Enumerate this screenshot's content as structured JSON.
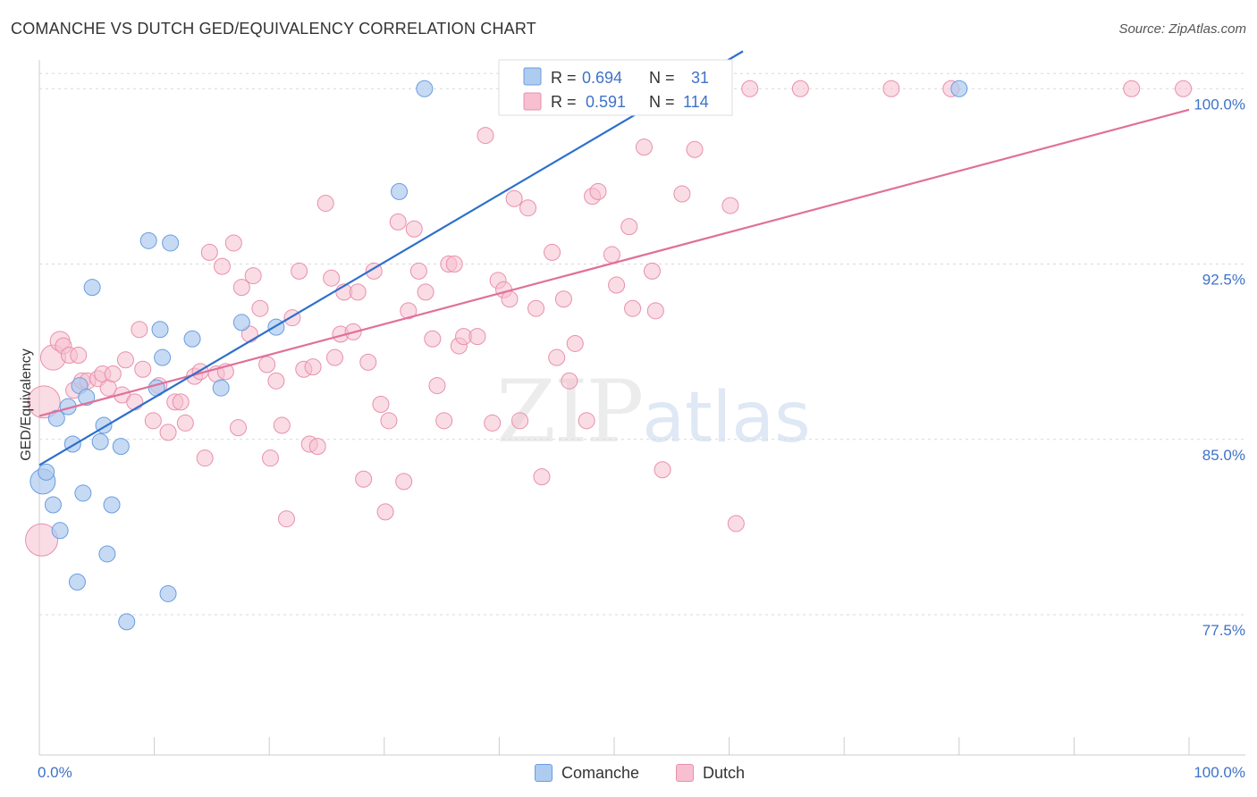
{
  "header": {
    "title": "COMANCHE VS DUTCH GED/EQUIVALENCY CORRELATION CHART",
    "source": "Source: ZipAtlas.com"
  },
  "watermark": {
    "zip": "ZIP",
    "atlas": "atlas"
  },
  "legend_box": {
    "rows": [
      {
        "r_label": "R =",
        "r_value": "0.694",
        "n_label": "N =",
        "n_value": "31"
      },
      {
        "r_label": "R =",
        "r_value": "0.591",
        "n_label": "N =",
        "n_value": "114"
      }
    ]
  },
  "colors": {
    "comanche_fill": "#aecbf0",
    "comanche_stroke": "#6a9de0",
    "comanche_line": "#2d6fcc",
    "dutch_fill": "#f6c0d0",
    "dutch_stroke": "#e890ad",
    "dutch_line": "#e0709a",
    "value_text": "#3f72c8",
    "grid": "#d9d9d9"
  },
  "chart_data": {
    "type": "scatter",
    "title": "COMANCHE VS DUTCH GED/EQUIVALENCY CORRELATION CHART",
    "xlabel": "",
    "ylabel": "GED/Equivalency",
    "xlim": [
      0,
      100
    ],
    "ylim": [
      71.5,
      101.5
    ],
    "x_tick_labels": [
      "0.0%",
      "100.0%"
    ],
    "y_ticks": [
      77.5,
      85.0,
      92.5,
      100.0
    ],
    "y_tick_labels": [
      "77.5%",
      "85.0%",
      "92.5%",
      "100.0%"
    ],
    "grid": true,
    "legend_placement": "bottom-center",
    "series": [
      {
        "name": "Comanche",
        "r": 0.694,
        "n": 31,
        "trend": {
          "x": [
            0,
            61.2
          ],
          "y": [
            83.9,
            101.6
          ]
        },
        "points": [
          [
            0.3,
            83.2,
            14
          ],
          [
            0.6,
            83.6,
            9
          ],
          [
            1.2,
            82.2,
            9
          ],
          [
            1.5,
            85.9,
            9
          ],
          [
            1.8,
            81.1,
            9
          ],
          [
            2.5,
            86.4,
            9
          ],
          [
            2.9,
            84.8,
            9
          ],
          [
            3.3,
            78.9,
            9
          ],
          [
            3.5,
            87.3,
            9
          ],
          [
            3.8,
            82.7,
            9
          ],
          [
            4.1,
            86.8,
            9
          ],
          [
            4.6,
            91.5,
            9
          ],
          [
            5.3,
            84.9,
            9
          ],
          [
            5.6,
            85.6,
            9
          ],
          [
            5.9,
            80.1,
            9
          ],
          [
            6.3,
            82.2,
            9
          ],
          [
            7.1,
            84.7,
            9
          ],
          [
            7.6,
            77.2,
            9
          ],
          [
            9.5,
            93.5,
            9
          ],
          [
            10.2,
            87.2,
            9
          ],
          [
            10.5,
            89.7,
            9
          ],
          [
            10.7,
            88.5,
            9
          ],
          [
            11.2,
            78.4,
            9
          ],
          [
            11.4,
            93.4,
            9
          ],
          [
            13.3,
            89.3,
            9
          ],
          [
            15.8,
            87.2,
            9
          ],
          [
            17.6,
            90.0,
            9
          ],
          [
            20.6,
            89.8,
            9
          ],
          [
            33.5,
            100.0,
            9
          ],
          [
            31.3,
            95.6,
            9
          ],
          [
            80.0,
            100.0,
            9
          ]
        ]
      },
      {
        "name": "Dutch",
        "r": 0.591,
        "n": 114,
        "trend": {
          "x": [
            0,
            100
          ],
          "y": [
            86.0,
            99.1
          ]
        },
        "points": [
          [
            0.2,
            80.7,
            18
          ],
          [
            0.4,
            86.6,
            18
          ],
          [
            1.2,
            88.5,
            14
          ],
          [
            1.8,
            89.2,
            11
          ],
          [
            2.1,
            89.0,
            9
          ],
          [
            2.6,
            88.6,
            9
          ],
          [
            3.0,
            87.1,
            9
          ],
          [
            3.4,
            88.6,
            9
          ],
          [
            3.7,
            87.5,
            9
          ],
          [
            4.2,
            87.5,
            9
          ],
          [
            5.1,
            87.6,
            9
          ],
          [
            5.5,
            87.8,
            9
          ],
          [
            6.0,
            87.2,
            9
          ],
          [
            6.4,
            87.8,
            9
          ],
          [
            7.2,
            86.9,
            9
          ],
          [
            7.5,
            88.4,
            9
          ],
          [
            8.3,
            86.6,
            9
          ],
          [
            8.7,
            89.7,
            9
          ],
          [
            9.0,
            88.0,
            9
          ],
          [
            9.9,
            85.8,
            9
          ],
          [
            10.4,
            87.3,
            9
          ],
          [
            11.2,
            85.3,
            9
          ],
          [
            11.8,
            86.6,
            9
          ],
          [
            12.3,
            86.6,
            9
          ],
          [
            12.7,
            85.7,
            9
          ],
          [
            13.5,
            87.7,
            9
          ],
          [
            14.0,
            87.9,
            9
          ],
          [
            14.4,
            84.2,
            9
          ],
          [
            14.8,
            93.0,
            9
          ],
          [
            15.4,
            87.8,
            9
          ],
          [
            15.9,
            92.4,
            9
          ],
          [
            16.2,
            87.9,
            9
          ],
          [
            16.9,
            93.4,
            9
          ],
          [
            17.3,
            85.5,
            9
          ],
          [
            17.6,
            91.5,
            9
          ],
          [
            18.3,
            89.5,
            9
          ],
          [
            18.6,
            92.0,
            9
          ],
          [
            19.2,
            90.6,
            9
          ],
          [
            19.8,
            88.2,
            9
          ],
          [
            20.1,
            84.2,
            9
          ],
          [
            20.6,
            87.5,
            9
          ],
          [
            21.1,
            85.6,
            9
          ],
          [
            21.5,
            81.6,
            9
          ],
          [
            22.0,
            90.2,
            9
          ],
          [
            22.6,
            92.2,
            9
          ],
          [
            23.0,
            88.0,
            9
          ],
          [
            23.5,
            84.8,
            9
          ],
          [
            23.8,
            88.1,
            9
          ],
          [
            24.2,
            84.7,
            9
          ],
          [
            24.9,
            95.1,
            9
          ],
          [
            25.4,
            91.9,
            9
          ],
          [
            25.7,
            88.5,
            9
          ],
          [
            26.2,
            89.5,
            9
          ],
          [
            26.5,
            91.3,
            9
          ],
          [
            27.3,
            89.6,
            9
          ],
          [
            27.7,
            91.3,
            9
          ],
          [
            28.2,
            83.3,
            9
          ],
          [
            28.6,
            88.3,
            9
          ],
          [
            29.1,
            92.2,
            9
          ],
          [
            29.7,
            86.5,
            9
          ],
          [
            30.1,
            81.9,
            9
          ],
          [
            30.4,
            85.8,
            9
          ],
          [
            31.2,
            94.3,
            9
          ],
          [
            31.7,
            83.2,
            9
          ],
          [
            32.1,
            90.5,
            9
          ],
          [
            32.6,
            94.0,
            9
          ],
          [
            33.0,
            92.2,
            9
          ],
          [
            33.6,
            91.3,
            9
          ],
          [
            34.2,
            89.3,
            9
          ],
          [
            34.6,
            87.3,
            9
          ],
          [
            35.2,
            85.8,
            9
          ],
          [
            35.6,
            92.5,
            9
          ],
          [
            36.1,
            92.5,
            9
          ],
          [
            36.5,
            89.0,
            9
          ],
          [
            36.9,
            89.4,
            9
          ],
          [
            38.1,
            89.4,
            9
          ],
          [
            38.8,
            98.0,
            9
          ],
          [
            39.4,
            85.7,
            9
          ],
          [
            39.9,
            91.8,
            9
          ],
          [
            40.4,
            91.4,
            9
          ],
          [
            40.9,
            91.0,
            9
          ],
          [
            41.3,
            95.3,
            9
          ],
          [
            41.8,
            85.8,
            9
          ],
          [
            42.5,
            94.9,
            9
          ],
          [
            43.2,
            90.6,
            9
          ],
          [
            43.7,
            83.4,
            9
          ],
          [
            44.6,
            93.0,
            9
          ],
          [
            45.0,
            88.5,
            9
          ],
          [
            45.6,
            91.0,
            9
          ],
          [
            46.1,
            87.5,
            9
          ],
          [
            46.6,
            89.1,
            9
          ],
          [
            47.6,
            85.8,
            9
          ],
          [
            48.1,
            95.4,
            9
          ],
          [
            48.6,
            95.6,
            9
          ],
          [
            49.8,
            92.9,
            9
          ],
          [
            50.2,
            91.6,
            9
          ],
          [
            51.3,
            94.1,
            9
          ],
          [
            51.6,
            90.6,
            9
          ],
          [
            52.6,
            97.5,
            9
          ],
          [
            53.3,
            92.2,
            9
          ],
          [
            53.6,
            90.5,
            9
          ],
          [
            54.2,
            83.7,
            9
          ],
          [
            55.9,
            95.5,
            9
          ],
          [
            57.0,
            97.4,
            9
          ],
          [
            60.1,
            95.0,
            9
          ],
          [
            60.6,
            81.4,
            9
          ],
          [
            61.8,
            100.0,
            9
          ],
          [
            66.2,
            100.0,
            9
          ],
          [
            74.1,
            100.0,
            9
          ],
          [
            79.3,
            100.0,
            9
          ],
          [
            95.0,
            100.0,
            9
          ],
          [
            99.5,
            100.0,
            9
          ]
        ]
      }
    ]
  }
}
